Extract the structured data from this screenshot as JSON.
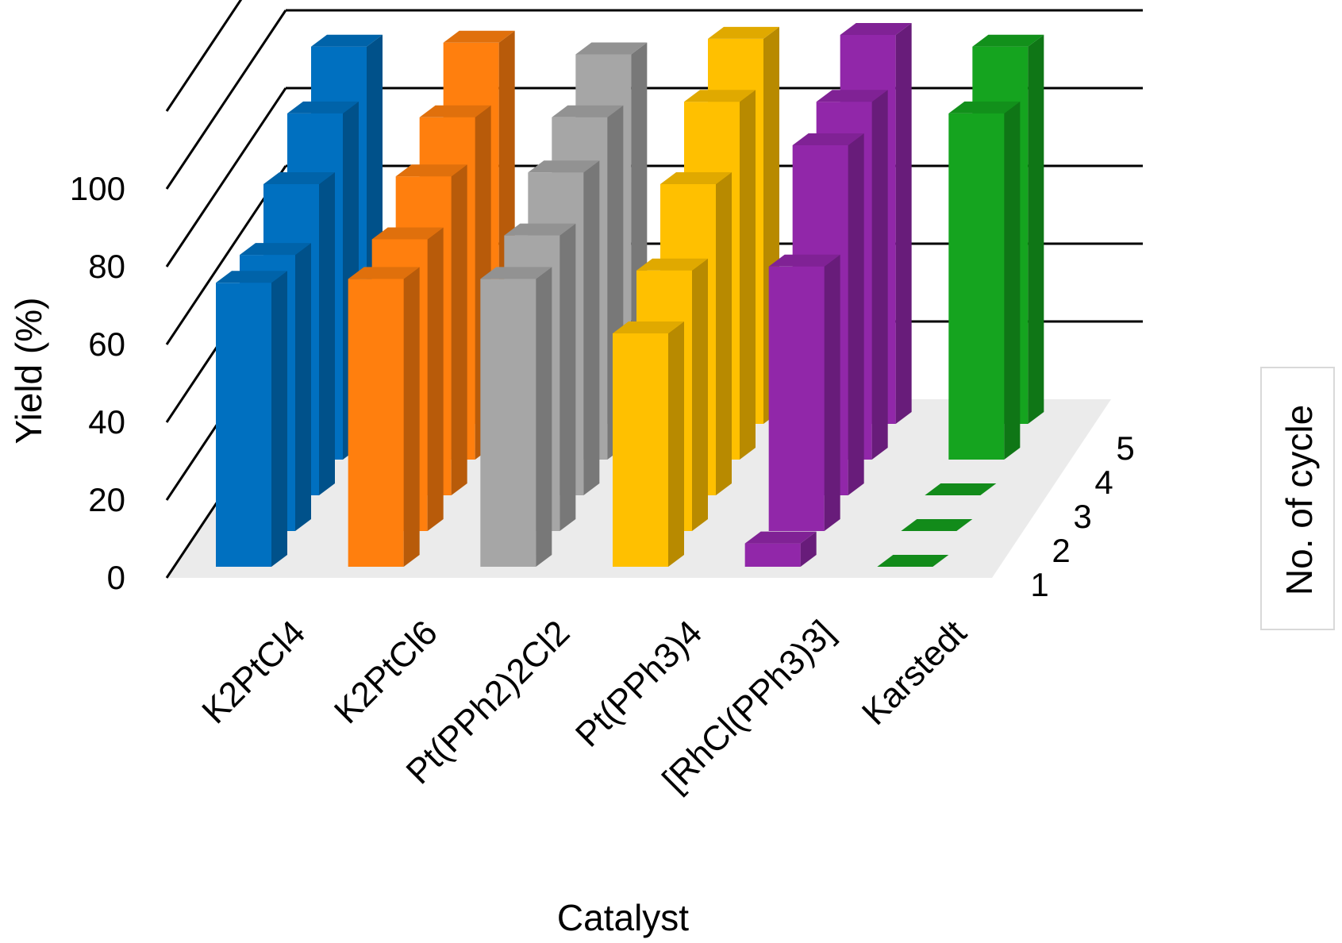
{
  "chart_data": {
    "type": "bar",
    "style": "3d-column",
    "xlabel": "Catalyst",
    "ylabel": "Yield (%)",
    "ylim": [
      0,
      100
    ],
    "yticks": [
      "0",
      "20",
      "40",
      "60",
      "80",
      "100"
    ],
    "grid": true,
    "categories": [
      "K2PtCl4",
      "K2PtCl6",
      "Pt(PPh2)2Cl2",
      "Pt(PPh3)4",
      "[RhCl(PPh3)3]",
      "Karstedt"
    ],
    "depth_title": "No. of cycle",
    "legend_position": "right",
    "series": [
      {
        "name": "1",
        "values": [
          97,
          98,
          95,
          99,
          100,
          97
        ]
      },
      {
        "name": "2",
        "values": [
          89,
          88,
          88,
          92,
          92,
          89
        ]
      },
      {
        "name": "3",
        "values": [
          80,
          82,
          83,
          80,
          90,
          0
        ]
      },
      {
        "name": "4",
        "values": [
          71,
          75,
          76,
          67,
          68,
          0
        ]
      },
      {
        "name": "5",
        "values": [
          73,
          74,
          74,
          60,
          6,
          0
        ]
      }
    ],
    "colors": {
      "K2PtCl4": "#0070c0",
      "K2PtCl6": "#ff7f0e",
      "Pt(PPh2)2Cl2": "#a6a6a6",
      "Pt(PPh3)4": "#ffc000",
      "[RhCl(PPh3)3]": "#9127a9",
      "Karstedt": "#15a41f"
    },
    "floor_color": "#ebebeb"
  }
}
